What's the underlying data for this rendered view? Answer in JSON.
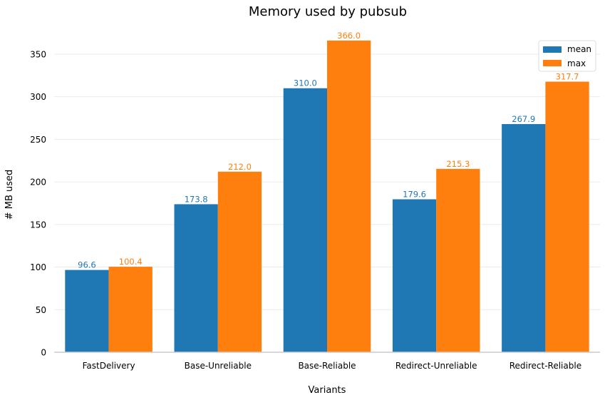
{
  "chart_data": {
    "type": "bar",
    "title": "Memory used by pubsub",
    "xlabel": "Variants",
    "ylabel": "# MB used",
    "categories": [
      "FastDelivery",
      "Base-Unreliable",
      "Base-Reliable",
      "Redirect-Unreliable",
      "Redirect-Reliable"
    ],
    "series": [
      {
        "name": "mean",
        "color": "#1f77b4",
        "values": [
          96.6,
          173.8,
          310.0,
          179.6,
          267.9
        ],
        "labels": [
          "96.6",
          "173.8",
          "310.0",
          "179.6",
          "267.9"
        ]
      },
      {
        "name": "max",
        "color": "#ff7f0e",
        "values": [
          100.4,
          212.0,
          366.0,
          215.3,
          317.7
        ],
        "labels": [
          "100.4",
          "212.0",
          "366.0",
          "215.3",
          "317.7"
        ]
      }
    ],
    "ylim": [
      0,
      384.3
    ],
    "yticks": [
      0,
      50,
      100,
      150,
      200,
      250,
      300,
      350
    ],
    "grid": "horizontal",
    "legend_position": "top-right"
  }
}
